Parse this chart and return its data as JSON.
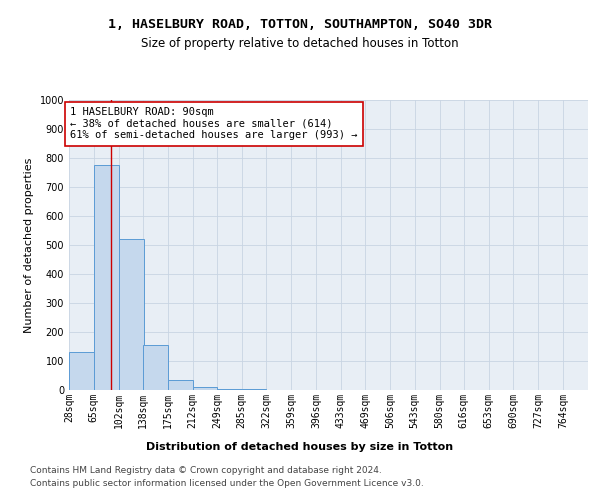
{
  "title_line1": "1, HASELBURY ROAD, TOTTON, SOUTHAMPTON, SO40 3DR",
  "title_line2": "Size of property relative to detached houses in Totton",
  "xlabel": "Distribution of detached houses by size in Totton",
  "ylabel": "Number of detached properties",
  "bar_edges": [
    28,
    65,
    102,
    138,
    175,
    212,
    249,
    285,
    322,
    359,
    396,
    433,
    469,
    506,
    543,
    580,
    616,
    653,
    690,
    727,
    764
  ],
  "bar_heights": [
    130,
    775,
    520,
    155,
    35,
    12,
    5,
    2,
    1,
    1,
    0,
    1,
    0,
    0,
    0,
    0,
    0,
    0,
    0,
    0
  ],
  "bar_color": "#c5d8ed",
  "bar_edge_color": "#5b9bd5",
  "property_size": 90,
  "property_line_color": "#cc0000",
  "annotation_line1": "1 HASELBURY ROAD: 90sqm",
  "annotation_line2": "← 38% of detached houses are smaller (614)",
  "annotation_line3": "61% of semi-detached houses are larger (993) →",
  "annotation_box_color": "#ffffff",
  "annotation_box_edge_color": "#cc0000",
  "ylim": [
    0,
    1000
  ],
  "yticks": [
    0,
    100,
    200,
    300,
    400,
    500,
    600,
    700,
    800,
    900,
    1000
  ],
  "grid_color": "#c8d4e3",
  "background_color": "#e8eef5",
  "footer_line1": "Contains HM Land Registry data © Crown copyright and database right 2024.",
  "footer_line2": "Contains public sector information licensed under the Open Government Licence v3.0.",
  "title_fontsize": 9.5,
  "subtitle_fontsize": 8.5,
  "axis_label_fontsize": 8,
  "tick_fontsize": 7,
  "annotation_fontsize": 7.5,
  "footer_fontsize": 6.5
}
